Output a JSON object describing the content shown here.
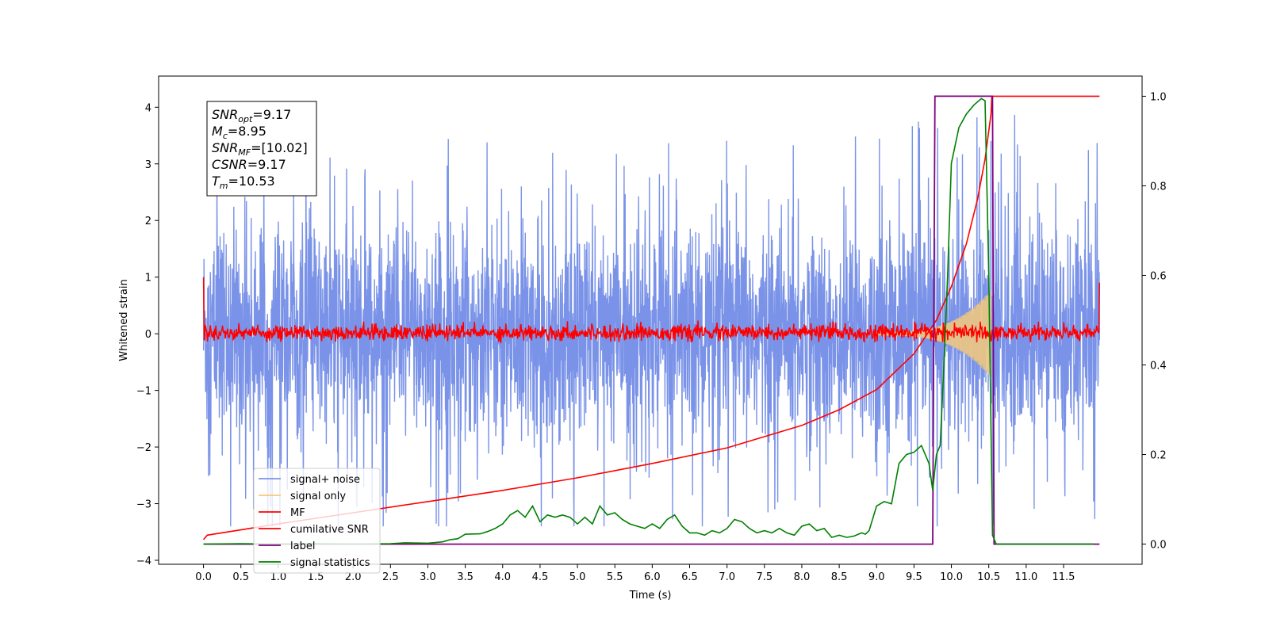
{
  "chart_data": {
    "type": "line",
    "xlabel": "Time (s)",
    "ylabel": "Whitened strain",
    "xlim": [
      -0.6,
      12.55
    ],
    "ylim_left": [
      -4.07,
      4.55
    ],
    "ylim_right": [
      -0.045,
      1.045
    ],
    "x_ticks": [
      "0.0",
      "0.5",
      "1.0",
      "1.5",
      "2.0",
      "2.5",
      "3.0",
      "3.5",
      "4.0",
      "4.5",
      "5.0",
      "5.5",
      "6.0",
      "6.5",
      "7.0",
      "7.5",
      "8.0",
      "8.5",
      "9.0",
      "9.5",
      "10.0",
      "10.5",
      "11.0",
      "11.5"
    ],
    "y_ticks_left": [
      "−4",
      "−3",
      "−2",
      "−1",
      "0",
      "1",
      "2",
      "3",
      "4"
    ],
    "y_ticks_right": [
      "0.0",
      "0.2",
      "0.4",
      "0.6",
      "0.8",
      "1.0"
    ],
    "annotation": [
      {
        "base": "SNR",
        "sub": "opt",
        "rest": "=9.17"
      },
      {
        "base": "M",
        "sub": "c",
        "rest": "=8.95"
      },
      {
        "base": "SNR",
        "sub": "MF",
        "rest": "=[10.02]"
      },
      {
        "base": "CSNR",
        "sub": "",
        "rest": "=9.17"
      },
      {
        "base": "T",
        "sub": "m",
        "rest": "=10.53"
      }
    ],
    "legend": {
      "placement": "lower-left",
      "entries": [
        {
          "label": "signal+ noise",
          "color": "#7a93e8"
        },
        {
          "label": "signal only",
          "color": "#f5c97a"
        },
        {
          "label": "MF",
          "color": "#ff0000"
        },
        {
          "label": "cumilative SNR",
          "color": "#ff0000"
        },
        {
          "label": "label",
          "color": "#800080"
        },
        {
          "label": "signal statistics",
          "color": "#008000"
        }
      ]
    },
    "series": [
      {
        "key": "signal_noise",
        "color": "#7a93e8",
        "axis": "left",
        "x_range": [
          0.0,
          11.98
        ],
        "amplitude_typical": 1.2,
        "peak_range": [
          -3.4,
          3.9
        ]
      },
      {
        "key": "signal_only",
        "color": "#f5c97a",
        "axis": "left",
        "x_range": [
          9.0,
          10.53
        ],
        "envelope_end": 0.75
      },
      {
        "key": "mf",
        "color": "#ff0000",
        "axis": "left",
        "x_range": [
          0.0,
          11.98
        ],
        "band": [
          -0.15,
          0.25
        ],
        "start_value": 1.0,
        "end_value": 0.9
      },
      {
        "key": "cumulative_snr",
        "color": "#ff0000",
        "axis": "right",
        "x": [
          0.0,
          0.05,
          1.0,
          2.0,
          3.0,
          4.0,
          5.0,
          6.0,
          7.0,
          8.0,
          8.5,
          9.0,
          9.5,
          9.8,
          10.0,
          10.2,
          10.35,
          10.45,
          10.53,
          10.54,
          11.98
        ],
        "y": [
          0.01,
          0.02,
          0.045,
          0.07,
          0.095,
          0.12,
          0.148,
          0.18,
          0.215,
          0.265,
          0.3,
          0.345,
          0.425,
          0.5,
          0.575,
          0.67,
          0.77,
          0.86,
          0.96,
          1.0,
          1.0
        ]
      },
      {
        "key": "label",
        "color": "#800080",
        "axis": "right",
        "x": [
          0.0,
          9.75,
          9.78,
          10.55,
          10.57,
          11.98
        ],
        "y": [
          0.0,
          0.0,
          1.0,
          1.0,
          0.0,
          0.0
        ]
      },
      {
        "key": "signal_statistics",
        "color": "#008000",
        "axis": "right",
        "x": [
          0.0,
          0.5,
          1.0,
          1.5,
          2.0,
          2.5,
          2.7,
          3.0,
          3.2,
          3.3,
          3.4,
          3.5,
          3.7,
          3.8,
          3.9,
          4.0,
          4.1,
          4.2,
          4.3,
          4.4,
          4.5,
          4.6,
          4.7,
          4.8,
          4.9,
          5.0,
          5.1,
          5.2,
          5.3,
          5.4,
          5.5,
          5.6,
          5.7,
          5.8,
          5.9,
          6.0,
          6.1,
          6.2,
          6.3,
          6.4,
          6.5,
          6.6,
          6.7,
          6.8,
          6.9,
          7.0,
          7.1,
          7.2,
          7.3,
          7.4,
          7.5,
          7.6,
          7.7,
          7.8,
          7.9,
          8.0,
          8.1,
          8.2,
          8.3,
          8.4,
          8.5,
          8.6,
          8.7,
          8.8,
          8.85,
          8.9,
          9.0,
          9.1,
          9.2,
          9.3,
          9.4,
          9.5,
          9.6,
          9.7,
          9.75,
          9.8,
          9.85,
          9.9,
          9.95,
          10.0,
          10.1,
          10.2,
          10.3,
          10.4,
          10.45,
          10.5,
          10.55,
          10.6,
          10.7,
          10.8,
          11.0,
          11.5,
          11.9
        ],
        "y": [
          0.0,
          0.001,
          0.0,
          0.001,
          0.0,
          0.001,
          0.003,
          0.002,
          0.005,
          0.01,
          0.012,
          0.022,
          0.023,
          0.028,
          0.035,
          0.045,
          0.065,
          0.075,
          0.06,
          0.085,
          0.05,
          0.065,
          0.06,
          0.065,
          0.06,
          0.045,
          0.06,
          0.045,
          0.085,
          0.065,
          0.07,
          0.055,
          0.045,
          0.04,
          0.035,
          0.045,
          0.035,
          0.055,
          0.065,
          0.04,
          0.025,
          0.025,
          0.02,
          0.03,
          0.025,
          0.035,
          0.055,
          0.05,
          0.035,
          0.025,
          0.03,
          0.025,
          0.035,
          0.025,
          0.02,
          0.04,
          0.045,
          0.03,
          0.035,
          0.015,
          0.02,
          0.015,
          0.018,
          0.025,
          0.022,
          0.03,
          0.085,
          0.095,
          0.09,
          0.18,
          0.2,
          0.205,
          0.22,
          0.18,
          0.12,
          0.2,
          0.22,
          0.4,
          0.6,
          0.85,
          0.93,
          0.96,
          0.98,
          0.995,
          0.99,
          0.6,
          0.02,
          0.0,
          0.0,
          0.0,
          0.0,
          0.0,
          0.0
        ]
      }
    ]
  }
}
